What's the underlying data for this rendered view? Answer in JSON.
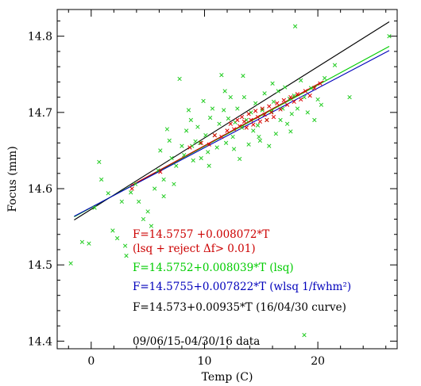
{
  "chart_data": {
    "type": "scatter",
    "xlabel": "Temp (C)",
    "ylabel": "Focus (mm)",
    "xlim": [
      -3,
      27
    ],
    "ylim": [
      14.39,
      14.835
    ],
    "xticks": [
      {
        "value": 0,
        "label": "0"
      },
      {
        "value": 10,
        "label": "10"
      },
      {
        "value": 20,
        "label": "20"
      }
    ],
    "yticks": [
      {
        "value": 14.4,
        "label": "14.4"
      },
      {
        "value": 14.5,
        "label": "14.5"
      },
      {
        "value": 14.6,
        "label": "14.6"
      },
      {
        "value": 14.7,
        "label": "14.7"
      },
      {
        "value": 14.8,
        "label": "14.8"
      }
    ],
    "grid": false,
    "lines": [
      {
        "color": "#000000",
        "intercept": 14.573,
        "slope": 0.00935,
        "x_range": [
          -1.5,
          26.3
        ]
      },
      {
        "color": "#00cc00",
        "intercept": 14.5752,
        "slope": 0.008039,
        "x_range": [
          -1.5,
          26.3
        ]
      },
      {
        "color": "#0000bb",
        "intercept": 14.5755,
        "slope": 0.007822,
        "x_range": [
          -1.5,
          26.3
        ]
      },
      {
        "color": "#cc0000",
        "intercept": 14.5757,
        "slope": 0.008072,
        "x_range": [
          3.5,
          20.5
        ]
      }
    ],
    "points_green": [
      [
        -1.8,
        14.502
      ],
      [
        -0.8,
        14.53
      ],
      [
        -0.2,
        14.528
      ],
      [
        0.3,
        14.575
      ],
      [
        0.7,
        14.635
      ],
      [
        0.9,
        14.612
      ],
      [
        1.5,
        14.594
      ],
      [
        1.9,
        14.545
      ],
      [
        2.3,
        14.535
      ],
      [
        2.7,
        14.583
      ],
      [
        3.0,
        14.525
      ],
      [
        3.1,
        14.512
      ],
      [
        3.5,
        14.595
      ],
      [
        3.9,
        14.606
      ],
      [
        4.2,
        14.583
      ],
      [
        4.6,
        14.56
      ],
      [
        5.0,
        14.57
      ],
      [
        5.3,
        14.551
      ],
      [
        5.6,
        14.6
      ],
      [
        5.9,
        14.624
      ],
      [
        6.1,
        14.65
      ],
      [
        6.4,
        14.59
      ],
      [
        6.7,
        14.678
      ],
      [
        6.9,
        14.663
      ],
      [
        7.1,
        14.64
      ],
      [
        7.3,
        14.606
      ],
      [
        7.5,
        14.63
      ],
      [
        7.8,
        14.744
      ],
      [
        8.0,
        14.656
      ],
      [
        8.2,
        14.644
      ],
      [
        8.4,
        14.676
      ],
      [
        8.6,
        14.703
      ],
      [
        8.8,
        14.69
      ],
      [
        9.0,
        14.637
      ],
      [
        9.2,
        14.662
      ],
      [
        9.4,
        14.681
      ],
      [
        9.6,
        14.66
      ],
      [
        9.9,
        14.715
      ],
      [
        10.1,
        14.67
      ],
      [
        10.3,
        14.648
      ],
      [
        10.5,
        14.693
      ],
      [
        10.7,
        14.705
      ],
      [
        10.9,
        14.67
      ],
      [
        11.1,
        14.654
      ],
      [
        11.3,
        14.685
      ],
      [
        11.5,
        14.749
      ],
      [
        11.7,
        14.703
      ],
      [
        11.9,
        14.66
      ],
      [
        12.1,
        14.692
      ],
      [
        12.3,
        14.72
      ],
      [
        12.5,
        14.668
      ],
      [
        12.7,
        14.687
      ],
      [
        12.9,
        14.705
      ],
      [
        13.1,
        14.639
      ],
      [
        13.3,
        14.68
      ],
      [
        13.5,
        14.72
      ],
      [
        13.7,
        14.69
      ],
      [
        13.9,
        14.658
      ],
      [
        14.1,
        14.7
      ],
      [
        14.3,
        14.676
      ],
      [
        14.5,
        14.712
      ],
      [
        14.7,
        14.683
      ],
      [
        14.9,
        14.663
      ],
      [
        15.1,
        14.703
      ],
      [
        15.3,
        14.725
      ],
      [
        15.5,
        14.69
      ],
      [
        15.7,
        14.656
      ],
      [
        15.9,
        14.701
      ],
      [
        16.1,
        14.714
      ],
      [
        16.3,
        14.672
      ],
      [
        16.5,
        14.728
      ],
      [
        16.7,
        14.69
      ],
      [
        16.9,
        14.705
      ],
      [
        17.1,
        14.733
      ],
      [
        17.3,
        14.685
      ],
      [
        17.5,
        14.718
      ],
      [
        17.7,
        14.698
      ],
      [
        17.9,
        14.722
      ],
      [
        18.0,
        14.813
      ],
      [
        18.2,
        14.705
      ],
      [
        18.5,
        14.742
      ],
      [
        18.8,
        14.72
      ],
      [
        19.1,
        14.7
      ],
      [
        19.4,
        14.732
      ],
      [
        19.7,
        14.69
      ],
      [
        20.0,
        14.717
      ],
      [
        20.3,
        14.71
      ],
      [
        20.6,
        14.745
      ],
      [
        21.5,
        14.762
      ],
      [
        22.8,
        14.72
      ],
      [
        26.3,
        14.8
      ],
      [
        18.8,
        14.408
      ],
      [
        11.8,
        14.728
      ],
      [
        13.4,
        14.748
      ],
      [
        10.4,
        14.63
      ],
      [
        6.4,
        14.612
      ],
      [
        8.9,
        14.656
      ],
      [
        14.8,
        14.668
      ],
      [
        12.6,
        14.652
      ],
      [
        16.0,
        14.738
      ],
      [
        17.6,
        14.675
      ],
      [
        9.7,
        14.64
      ]
    ],
    "points_red": [
      [
        3.6,
        14.6
      ],
      [
        6.1,
        14.622
      ],
      [
        8.7,
        14.654
      ],
      [
        9.7,
        14.66
      ],
      [
        10.4,
        14.658
      ],
      [
        10.9,
        14.67
      ],
      [
        11.5,
        14.668
      ],
      [
        12.0,
        14.676
      ],
      [
        12.3,
        14.685
      ],
      [
        12.6,
        14.678
      ],
      [
        12.9,
        14.69
      ],
      [
        13.1,
        14.682
      ],
      [
        13.3,
        14.694
      ],
      [
        13.5,
        14.688
      ],
      [
        13.7,
        14.68
      ],
      [
        13.9,
        14.698
      ],
      [
        14.1,
        14.69
      ],
      [
        14.3,
        14.684
      ],
      [
        14.5,
        14.702
      ],
      [
        14.7,
        14.694
      ],
      [
        14.9,
        14.688
      ],
      [
        15.1,
        14.705
      ],
      [
        15.3,
        14.697
      ],
      [
        15.5,
        14.69
      ],
      [
        15.7,
        14.708
      ],
      [
        15.9,
        14.7
      ],
      [
        16.1,
        14.694
      ],
      [
        16.4,
        14.712
      ],
      [
        16.7,
        14.704
      ],
      [
        17.0,
        14.716
      ],
      [
        17.3,
        14.71
      ],
      [
        17.6,
        14.72
      ],
      [
        17.9,
        14.714
      ],
      [
        18.2,
        14.724
      ],
      [
        18.5,
        14.717
      ],
      [
        18.9,
        14.728
      ],
      [
        19.3,
        14.722
      ],
      [
        19.7,
        14.732
      ],
      [
        20.2,
        14.738
      ]
    ],
    "annotations": [
      {
        "text": "F=14.5757 +0.008072*T",
        "color": "#cc0000"
      },
      {
        "text": "(lsq + reject Δf> 0.01)",
        "color": "#cc0000"
      },
      {
        "text": "F=14.5752+0.008039*T (lsq)",
        "color": "#00cc00"
      },
      {
        "text": "F=14.5755+0.007822*T (wlsq 1/fwhm²)",
        "color": "#0000bb"
      },
      {
        "text": "F=14.573+0.00935*T (16/04/30 curve)",
        "color": "#000000"
      },
      {
        "text": "09/06/15-04/30/16 data",
        "color": "#000000"
      }
    ]
  }
}
